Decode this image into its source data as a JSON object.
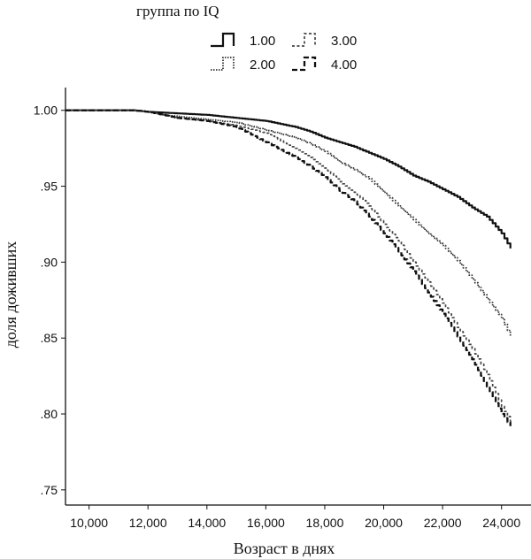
{
  "chart_data": {
    "type": "line",
    "xlabel": "Возраст в днях",
    "ylabel": "доля доживших",
    "xlim": [
      9200,
      25000
    ],
    "ylim": [
      0.74,
      1.015
    ],
    "x_ticks": [
      10000,
      12000,
      14000,
      16000,
      18000,
      20000,
      22000,
      24000
    ],
    "x_tick_labels": [
      "10,000",
      "12,000",
      "14,000",
      "16,000",
      "18,000",
      "20,000",
      "22,000",
      "24,000"
    ],
    "y_ticks": [
      0.75,
      0.8,
      0.85,
      0.9,
      0.95,
      1.0
    ],
    "y_tick_labels": [
      ".75",
      ".80",
      ".85",
      ".90",
      ".95",
      "1.00"
    ],
    "grid": false,
    "legend": {
      "title": "группа по  IQ",
      "placement": "top",
      "entries": [
        "1.00",
        "2.00",
        "3.00",
        "4.00"
      ]
    },
    "series": [
      {
        "name": "1.00",
        "style": "solid",
        "x": [
          9200,
          11500,
          12000,
          13000,
          14000,
          15000,
          16000,
          17000,
          17500,
          18000,
          18500,
          19000,
          19500,
          20000,
          20500,
          21000,
          21500,
          22000,
          22500,
          23000,
          23500,
          24000,
          24300
        ],
        "y": [
          1.0,
          1.0,
          0.999,
          0.998,
          0.997,
          0.995,
          0.993,
          0.989,
          0.986,
          0.982,
          0.979,
          0.976,
          0.972,
          0.968,
          0.963,
          0.957,
          0.953,
          0.948,
          0.943,
          0.936,
          0.93,
          0.919,
          0.909
        ]
      },
      {
        "name": "2.00",
        "style": "dotted",
        "x": [
          9200,
          11500,
          12000,
          12500,
          13000,
          14000,
          15000,
          16000,
          17000,
          17500,
          18000,
          18500,
          19000,
          19500,
          20000,
          20500,
          21000,
          21500,
          22000,
          22500,
          23000,
          23500,
          24000,
          24300
        ],
        "y": [
          1.0,
          1.0,
          0.999,
          0.997,
          0.996,
          0.994,
          0.992,
          0.987,
          0.982,
          0.978,
          0.973,
          0.966,
          0.961,
          0.955,
          0.946,
          0.937,
          0.928,
          0.919,
          0.911,
          0.901,
          0.889,
          0.876,
          0.863,
          0.851
        ]
      },
      {
        "name": "3.00",
        "style": "dashed-light",
        "x": [
          9200,
          11500,
          12000,
          12500,
          13000,
          14000,
          15000,
          16000,
          16500,
          17000,
          17500,
          18000,
          18500,
          19000,
          19500,
          20000,
          20500,
          21000,
          21500,
          22000,
          22500,
          23000,
          23500,
          24000,
          24300
        ],
        "y": [
          1.0,
          1.0,
          0.999,
          0.997,
          0.995,
          0.993,
          0.99,
          0.985,
          0.98,
          0.975,
          0.969,
          0.962,
          0.953,
          0.946,
          0.937,
          0.925,
          0.914,
          0.9,
          0.887,
          0.873,
          0.857,
          0.843,
          0.826,
          0.805,
          0.795
        ]
      },
      {
        "name": "4.00",
        "style": "dashed",
        "x": [
          9200,
          11500,
          12000,
          12500,
          13000,
          14000,
          15000,
          15500,
          16000,
          16500,
          17000,
          17500,
          18000,
          18500,
          19000,
          19500,
          20000,
          20500,
          21000,
          21500,
          22000,
          22500,
          23000,
          23500,
          24000,
          24300
        ],
        "y": [
          1.0,
          1.0,
          0.999,
          0.997,
          0.995,
          0.993,
          0.989,
          0.984,
          0.979,
          0.974,
          0.969,
          0.963,
          0.956,
          0.947,
          0.94,
          0.93,
          0.919,
          0.907,
          0.894,
          0.88,
          0.866,
          0.851,
          0.836,
          0.818,
          0.8,
          0.792
        ]
      }
    ]
  }
}
